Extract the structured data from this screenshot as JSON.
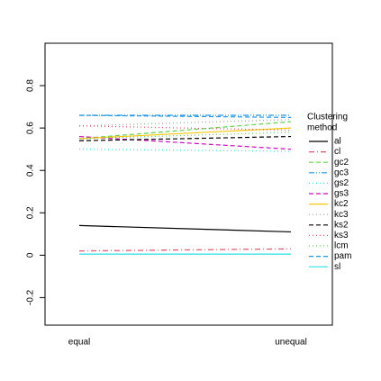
{
  "chart_data": {
    "type": "line",
    "categories": [
      "equal",
      "unequal"
    ],
    "ylim": [
      -0.33,
      1.0
    ],
    "yticks": [
      -0.2,
      0.0,
      0.2,
      0.4,
      0.6,
      0.8
    ],
    "legend_title": [
      "Clustering",
      " method"
    ],
    "series": [
      {
        "name": "al",
        "color": "#000000",
        "dash": "",
        "values": [
          0.14,
          0.11
        ]
      },
      {
        "name": "cl",
        "color": "#DF536B",
        "dash": "6 3 1 3",
        "values": [
          0.02,
          0.03
        ]
      },
      {
        "name": "gc2",
        "color": "#61D04F",
        "dash": "5 3",
        "values": [
          0.55,
          0.63
        ]
      },
      {
        "name": "gc3",
        "color": "#2297E6",
        "dash": "6 2 1 2 1 2",
        "values": [
          0.66,
          0.66
        ]
      },
      {
        "name": "gs2",
        "color": "#28E2E5",
        "dash": "1 3",
        "values": [
          0.5,
          0.49
        ]
      },
      {
        "name": "gs3",
        "color": "#CD0BBC",
        "dash": "5 3",
        "values": [
          0.56,
          0.5
        ]
      },
      {
        "name": "kc2",
        "color": "#F5C710",
        "dash": "",
        "values": [
          0.55,
          0.6
        ]
      },
      {
        "name": "kc3",
        "color": "#9E9E9E",
        "dash": "1 3",
        "values": [
          0.61,
          0.64
        ]
      },
      {
        "name": "ks2",
        "color": "#000000",
        "dash": "5 3",
        "values": [
          0.54,
          0.56
        ]
      },
      {
        "name": "ks3",
        "color": "#DF536B",
        "dash": "1 3",
        "values": [
          0.61,
          0.59
        ]
      },
      {
        "name": "lcm",
        "color": "#61D04F",
        "dash": "1 3",
        "values": [
          0.55,
          0.58
        ]
      },
      {
        "name": "pam",
        "color": "#2297E6",
        "dash": "5 3",
        "values": [
          0.66,
          0.65
        ]
      },
      {
        "name": "sl",
        "color": "#28E2E5",
        "dash": "",
        "values": [
          0.005,
          0.005
        ]
      }
    ]
  }
}
